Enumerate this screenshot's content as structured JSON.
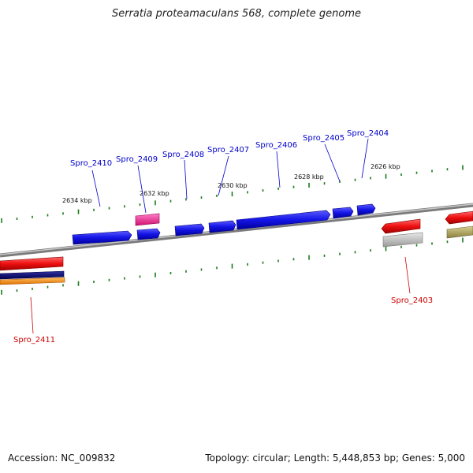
{
  "title": "Serratia proteamaculans 568, complete genome",
  "footer": {
    "accession": "Accession: NC_009832",
    "summary": "Topology: circular; Length: 5,448,853 bp; Genes: 5,000"
  },
  "scale_labels": [
    "2634 kbp",
    "2632 kbp",
    "2630 kbp",
    "2628 kbp",
    "2626 kbp"
  ],
  "genes": [
    {
      "name": "Spro_2410",
      "color": "#0000cc"
    },
    {
      "name": "Spro_2409",
      "color": "#0000cc"
    },
    {
      "name": "Spro_2408",
      "color": "#0000cc"
    },
    {
      "name": "Spro_2407",
      "color": "#0000cc"
    },
    {
      "name": "Spro_2406",
      "color": "#0000cc"
    },
    {
      "name": "Spro_2405",
      "color": "#0000cc"
    },
    {
      "name": "Spro_2404",
      "color": "#0000cc"
    },
    {
      "name": "Spro_2403",
      "color": "#cc0000"
    },
    {
      "name": "Spro_2411",
      "color": "#cc0000"
    }
  ],
  "colors": {
    "forward_gene": "#1010e0",
    "reverse_gene": "#ee1010",
    "backbone": "#888888",
    "tick": "#1a7a1a"
  }
}
